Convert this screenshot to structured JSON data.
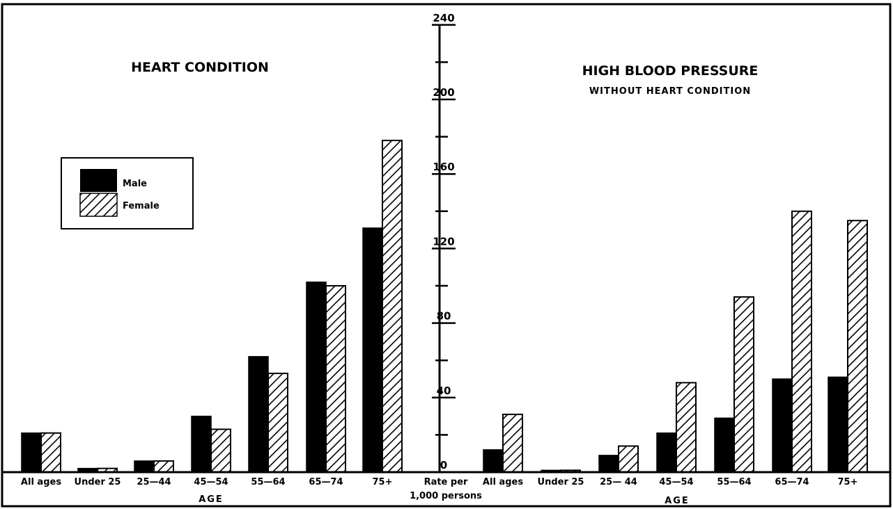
{
  "chart_data": [
    {
      "type": "bar",
      "title": "HEART CONDITION",
      "subtitle": "",
      "xlabel": "AGE",
      "ylabel": "Rate per 1,000 persons",
      "ylim": [
        0,
        240
      ],
      "categories": [
        "All ages",
        "Under 25",
        "25—44",
        "45—54",
        "55—64",
        "65—74",
        "75+"
      ],
      "series": [
        {
          "name": "Male",
          "values": [
            21,
            2,
            6,
            30,
            62,
            102,
            131
          ]
        },
        {
          "name": "Female",
          "values": [
            21,
            2,
            6,
            23,
            53,
            100,
            178
          ]
        }
      ]
    },
    {
      "type": "bar",
      "title": "HIGH BLOOD PRESSURE",
      "subtitle": "WITHOUT HEART CONDITION",
      "xlabel": "AGE",
      "ylabel": "Rate per 1,000 persons",
      "ylim": [
        0,
        240
      ],
      "categories": [
        "All ages",
        "Under 25",
        "25— 44",
        "45—54",
        "55—64",
        "65—74",
        "75+"
      ],
      "series": [
        {
          "name": "Male",
          "values": [
            12,
            1,
            9,
            21,
            29,
            50,
            51
          ]
        },
        {
          "name": "Female",
          "values": [
            31,
            1,
            14,
            48,
            94,
            140,
            135
          ]
        }
      ]
    }
  ],
  "axis": {
    "ticks": [
      "0",
      "40",
      "80",
      "120",
      "160",
      "200",
      "240"
    ],
    "tick_values": [
      0,
      40,
      80,
      120,
      160,
      200,
      240
    ],
    "minor_tick_values": [
      20,
      60,
      100,
      140,
      180,
      220
    ],
    "label_line1": "Rate per",
    "label_line2": "1,000 persons"
  },
  "legend": {
    "male_label": "Male",
    "female_label": "Female",
    "placement": "upper-left"
  },
  "colors": {
    "male": "#000000",
    "female_stripe": "#000000",
    "background": "#ffffff"
  }
}
